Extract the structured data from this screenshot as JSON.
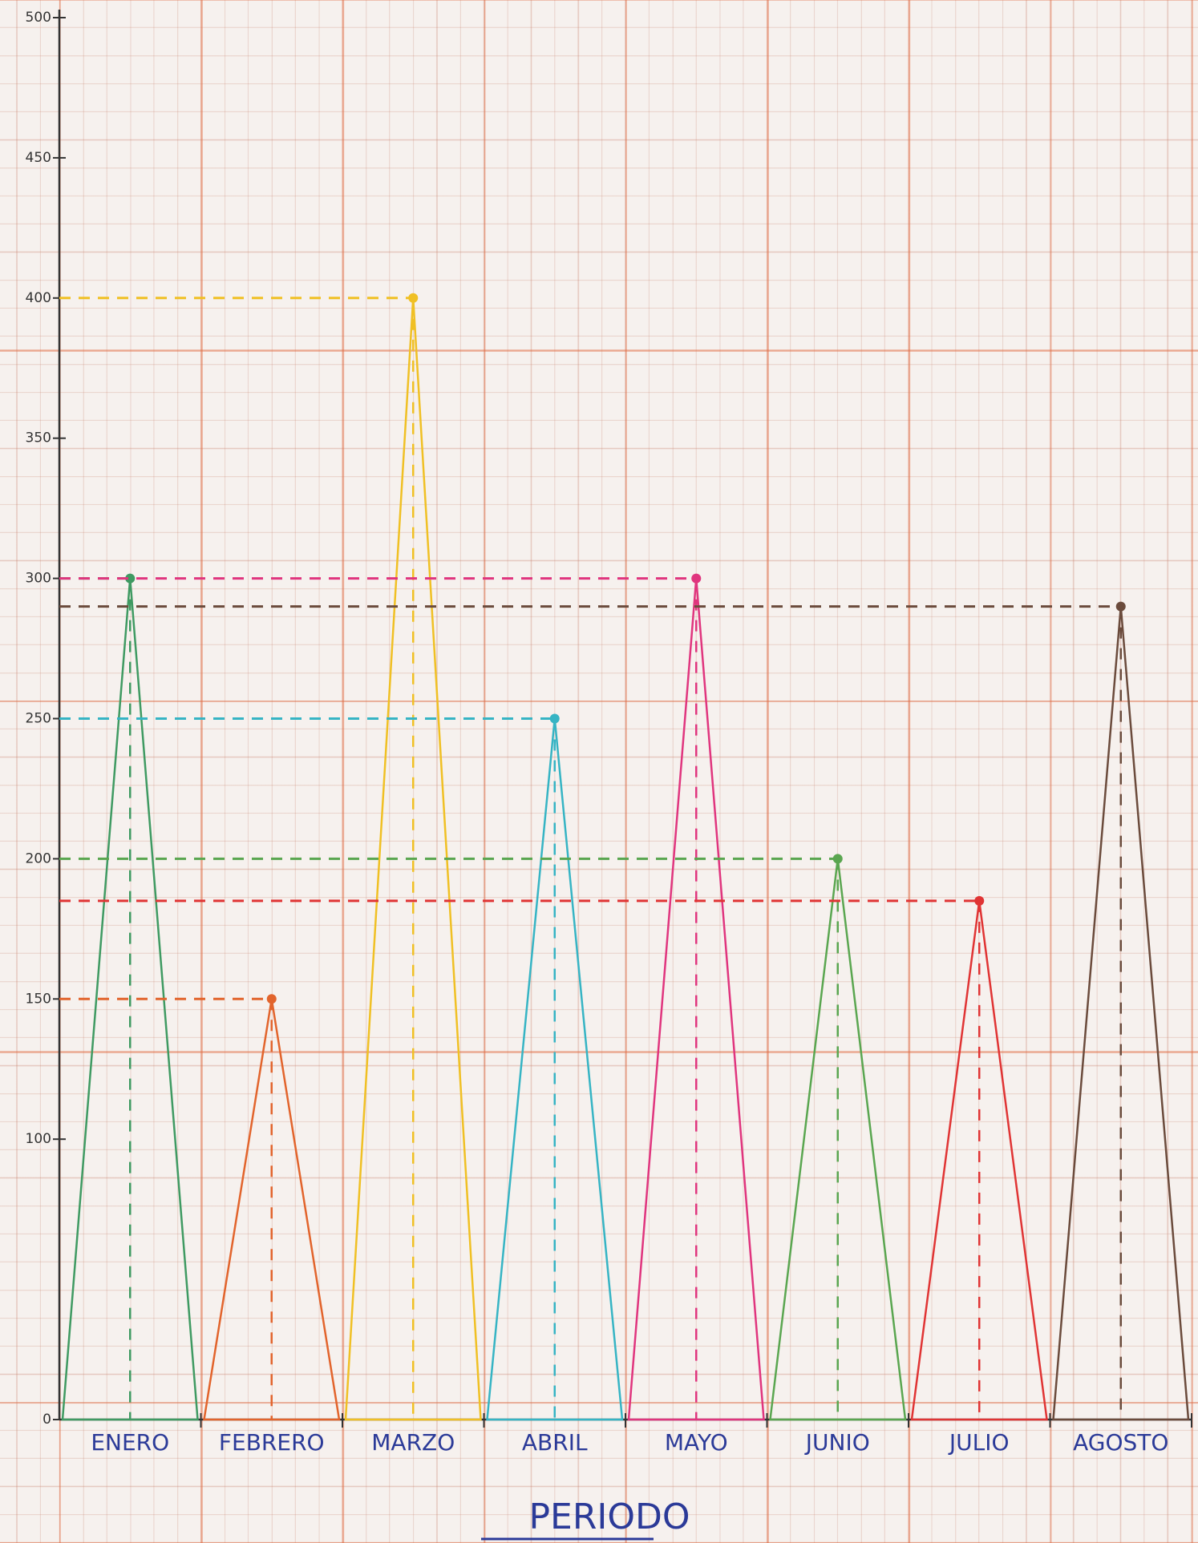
{
  "chart_data": {
    "type": "triangle",
    "x_label": "PERIODO",
    "categories": [
      "ENERO",
      "FEBRERO",
      "MARZO",
      "ABRIL",
      "MAYO",
      "JUNIO",
      "JULIO",
      "AGOSTO"
    ],
    "values": [
      300,
      150,
      400,
      250,
      300,
      200,
      185,
      290
    ],
    "colors": [
      "#3f9a62",
      "#e2642c",
      "#f0c024",
      "#36b4c4",
      "#e0357e",
      "#5aa650",
      "#e03434",
      "#6b4b3c"
    ],
    "ylim": [
      0,
      500
    ],
    "yticks": [
      0,
      100,
      150,
      200,
      250,
      300,
      350,
      400,
      450,
      500
    ],
    "grid": true
  }
}
